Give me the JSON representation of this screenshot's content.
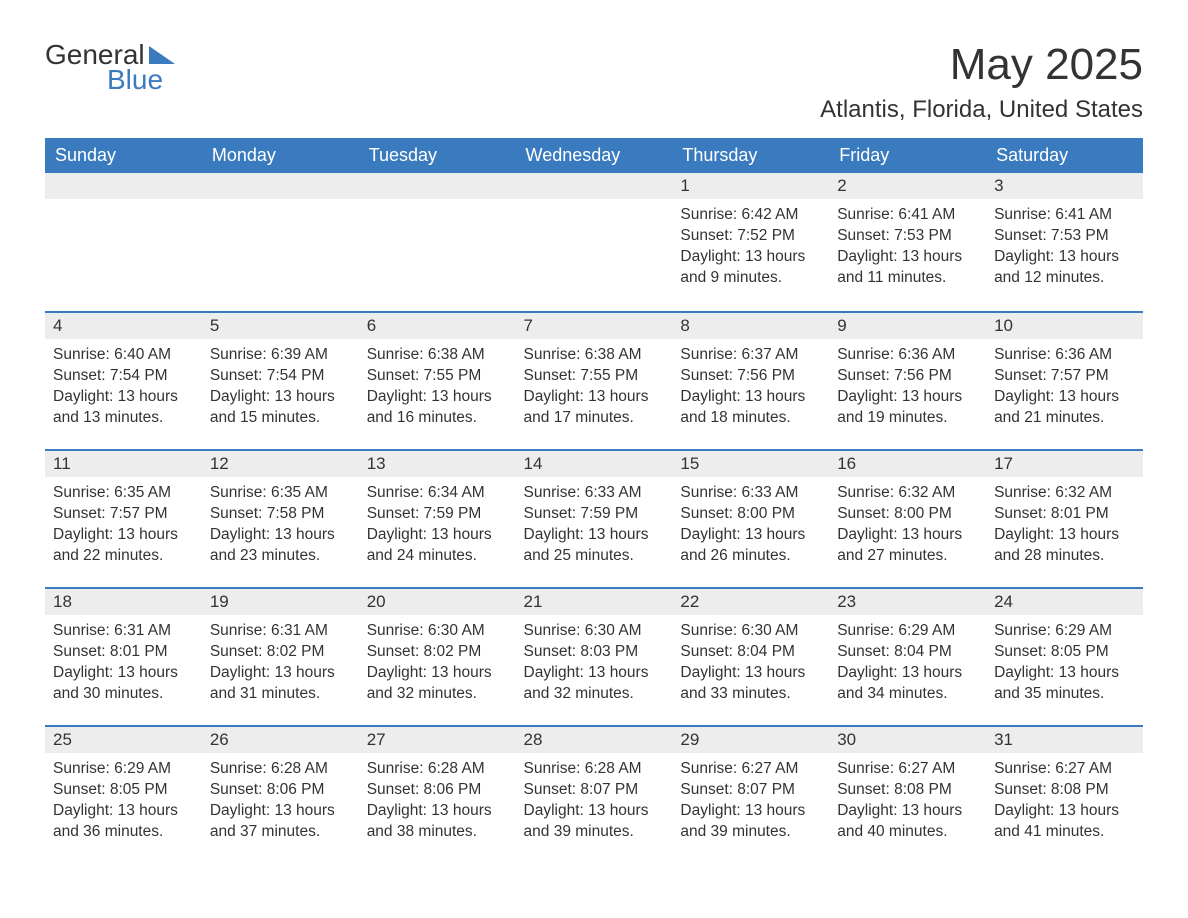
{
  "logo": {
    "text_general": "General",
    "text_blue": "Blue",
    "triangle_color": "#3a7bbf"
  },
  "title": "May 2025",
  "location": "Atlantis, Florida, United States",
  "colors": {
    "header_bg": "#3a7bbf",
    "header_text": "#ffffff",
    "day_number_bg": "#ededed",
    "row_divider": "#3a7bbf",
    "text": "#333333",
    "background": "#ffffff"
  },
  "day_headers": [
    "Sunday",
    "Monday",
    "Tuesday",
    "Wednesday",
    "Thursday",
    "Friday",
    "Saturday"
  ],
  "weeks": [
    [
      {
        "empty": true
      },
      {
        "empty": true
      },
      {
        "empty": true
      },
      {
        "empty": true
      },
      {
        "day": "1",
        "sunrise": "Sunrise: 6:42 AM",
        "sunset": "Sunset: 7:52 PM",
        "daylight1": "Daylight: 13 hours",
        "daylight2": "and 9 minutes."
      },
      {
        "day": "2",
        "sunrise": "Sunrise: 6:41 AM",
        "sunset": "Sunset: 7:53 PM",
        "daylight1": "Daylight: 13 hours",
        "daylight2": "and 11 minutes."
      },
      {
        "day": "3",
        "sunrise": "Sunrise: 6:41 AM",
        "sunset": "Sunset: 7:53 PM",
        "daylight1": "Daylight: 13 hours",
        "daylight2": "and 12 minutes."
      }
    ],
    [
      {
        "day": "4",
        "sunrise": "Sunrise: 6:40 AM",
        "sunset": "Sunset: 7:54 PM",
        "daylight1": "Daylight: 13 hours",
        "daylight2": "and 13 minutes."
      },
      {
        "day": "5",
        "sunrise": "Sunrise: 6:39 AM",
        "sunset": "Sunset: 7:54 PM",
        "daylight1": "Daylight: 13 hours",
        "daylight2": "and 15 minutes."
      },
      {
        "day": "6",
        "sunrise": "Sunrise: 6:38 AM",
        "sunset": "Sunset: 7:55 PM",
        "daylight1": "Daylight: 13 hours",
        "daylight2": "and 16 minutes."
      },
      {
        "day": "7",
        "sunrise": "Sunrise: 6:38 AM",
        "sunset": "Sunset: 7:55 PM",
        "daylight1": "Daylight: 13 hours",
        "daylight2": "and 17 minutes."
      },
      {
        "day": "8",
        "sunrise": "Sunrise: 6:37 AM",
        "sunset": "Sunset: 7:56 PM",
        "daylight1": "Daylight: 13 hours",
        "daylight2": "and 18 minutes."
      },
      {
        "day": "9",
        "sunrise": "Sunrise: 6:36 AM",
        "sunset": "Sunset: 7:56 PM",
        "daylight1": "Daylight: 13 hours",
        "daylight2": "and 19 minutes."
      },
      {
        "day": "10",
        "sunrise": "Sunrise: 6:36 AM",
        "sunset": "Sunset: 7:57 PM",
        "daylight1": "Daylight: 13 hours",
        "daylight2": "and 21 minutes."
      }
    ],
    [
      {
        "day": "11",
        "sunrise": "Sunrise: 6:35 AM",
        "sunset": "Sunset: 7:57 PM",
        "daylight1": "Daylight: 13 hours",
        "daylight2": "and 22 minutes."
      },
      {
        "day": "12",
        "sunrise": "Sunrise: 6:35 AM",
        "sunset": "Sunset: 7:58 PM",
        "daylight1": "Daylight: 13 hours",
        "daylight2": "and 23 minutes."
      },
      {
        "day": "13",
        "sunrise": "Sunrise: 6:34 AM",
        "sunset": "Sunset: 7:59 PM",
        "daylight1": "Daylight: 13 hours",
        "daylight2": "and 24 minutes."
      },
      {
        "day": "14",
        "sunrise": "Sunrise: 6:33 AM",
        "sunset": "Sunset: 7:59 PM",
        "daylight1": "Daylight: 13 hours",
        "daylight2": "and 25 minutes."
      },
      {
        "day": "15",
        "sunrise": "Sunrise: 6:33 AM",
        "sunset": "Sunset: 8:00 PM",
        "daylight1": "Daylight: 13 hours",
        "daylight2": "and 26 minutes."
      },
      {
        "day": "16",
        "sunrise": "Sunrise: 6:32 AM",
        "sunset": "Sunset: 8:00 PM",
        "daylight1": "Daylight: 13 hours",
        "daylight2": "and 27 minutes."
      },
      {
        "day": "17",
        "sunrise": "Sunrise: 6:32 AM",
        "sunset": "Sunset: 8:01 PM",
        "daylight1": "Daylight: 13 hours",
        "daylight2": "and 28 minutes."
      }
    ],
    [
      {
        "day": "18",
        "sunrise": "Sunrise: 6:31 AM",
        "sunset": "Sunset: 8:01 PM",
        "daylight1": "Daylight: 13 hours",
        "daylight2": "and 30 minutes."
      },
      {
        "day": "19",
        "sunrise": "Sunrise: 6:31 AM",
        "sunset": "Sunset: 8:02 PM",
        "daylight1": "Daylight: 13 hours",
        "daylight2": "and 31 minutes."
      },
      {
        "day": "20",
        "sunrise": "Sunrise: 6:30 AM",
        "sunset": "Sunset: 8:02 PM",
        "daylight1": "Daylight: 13 hours",
        "daylight2": "and 32 minutes."
      },
      {
        "day": "21",
        "sunrise": "Sunrise: 6:30 AM",
        "sunset": "Sunset: 8:03 PM",
        "daylight1": "Daylight: 13 hours",
        "daylight2": "and 32 minutes."
      },
      {
        "day": "22",
        "sunrise": "Sunrise: 6:30 AM",
        "sunset": "Sunset: 8:04 PM",
        "daylight1": "Daylight: 13 hours",
        "daylight2": "and 33 minutes."
      },
      {
        "day": "23",
        "sunrise": "Sunrise: 6:29 AM",
        "sunset": "Sunset: 8:04 PM",
        "daylight1": "Daylight: 13 hours",
        "daylight2": "and 34 minutes."
      },
      {
        "day": "24",
        "sunrise": "Sunrise: 6:29 AM",
        "sunset": "Sunset: 8:05 PM",
        "daylight1": "Daylight: 13 hours",
        "daylight2": "and 35 minutes."
      }
    ],
    [
      {
        "day": "25",
        "sunrise": "Sunrise: 6:29 AM",
        "sunset": "Sunset: 8:05 PM",
        "daylight1": "Daylight: 13 hours",
        "daylight2": "and 36 minutes."
      },
      {
        "day": "26",
        "sunrise": "Sunrise: 6:28 AM",
        "sunset": "Sunset: 8:06 PM",
        "daylight1": "Daylight: 13 hours",
        "daylight2": "and 37 minutes."
      },
      {
        "day": "27",
        "sunrise": "Sunrise: 6:28 AM",
        "sunset": "Sunset: 8:06 PM",
        "daylight1": "Daylight: 13 hours",
        "daylight2": "and 38 minutes."
      },
      {
        "day": "28",
        "sunrise": "Sunrise: 6:28 AM",
        "sunset": "Sunset: 8:07 PM",
        "daylight1": "Daylight: 13 hours",
        "daylight2": "and 39 minutes."
      },
      {
        "day": "29",
        "sunrise": "Sunrise: 6:27 AM",
        "sunset": "Sunset: 8:07 PM",
        "daylight1": "Daylight: 13 hours",
        "daylight2": "and 39 minutes."
      },
      {
        "day": "30",
        "sunrise": "Sunrise: 6:27 AM",
        "sunset": "Sunset: 8:08 PM",
        "daylight1": "Daylight: 13 hours",
        "daylight2": "and 40 minutes."
      },
      {
        "day": "31",
        "sunrise": "Sunrise: 6:27 AM",
        "sunset": "Sunset: 8:08 PM",
        "daylight1": "Daylight: 13 hours",
        "daylight2": "and 41 minutes."
      }
    ]
  ]
}
